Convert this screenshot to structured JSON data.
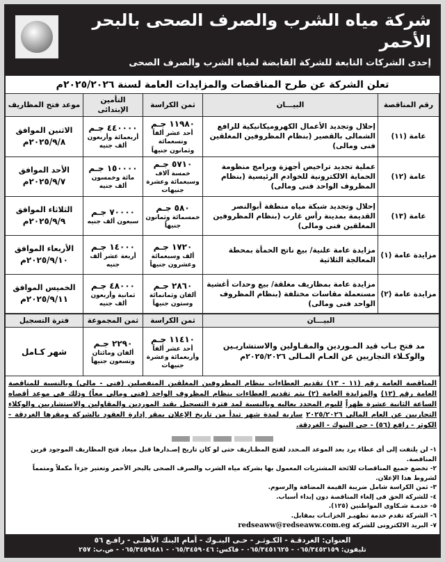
{
  "header": {
    "title": "شركة مياه الشرب والصرف الصحى بالبحر الأحمر",
    "subtitle": "إحدى الشركات التابعة للشركة القابضة لمياه الشرب والصرف الصحى",
    "logo_text": "شركة مياه الشرب والصرف الصحى بالبحر الأحمر"
  },
  "announcement": "تعلن الشركة عن طرح المناقصات والمزايدات العامة لسنة ٢٠٢٥/٢٠٢٦م",
  "table": {
    "headers": [
      "رقم المناقصة",
      "البيـــان",
      "ثمن الكراسة",
      "التأمين الإبتدائى",
      "موعد فتح المظاريف"
    ],
    "rows": [
      {
        "no": "عامة (١١)",
        "desc": "إحلال وتجديد الأعمال الكهروميكانيكية للرافع الشمالى بالقصير (بنظام المظروفين المغلقين فنى ومالى)",
        "fee": "١١٩٨٠ جـم",
        "fee_words": "أحد عشر ألفاً وتسعمائة وثمانون جنيهاً",
        "deposit": "٤٤٠٠٠٠ جـم",
        "deposit_words": "أربعمائة وأربعون ألف جنيه",
        "day": "الاثنين الموافق",
        "date": "٢٠٢٥/٩/٨م"
      },
      {
        "no": "عامة (١٢)",
        "desc": "عملية تجديد تراخيص أجهزة وبرامج منظومة الحماية الالكترونية للخوادم الرئيسية (بنظام المظروف الواحد فنى ومالى)",
        "fee": "٥٧١٠ جـم",
        "fee_words": "خمسة آلاف وسبعمائة وعشرة جنيهات",
        "deposit": "١٥٠٠٠٠ جـم",
        "deposit_words": "مائة وخمسون ألف جنيه",
        "day": "الأحد الموافق",
        "date": "٢٠٢٥/٩/٧م"
      },
      {
        "no": "عامة (١٣)",
        "desc": "إحلال وتجديد شبكة مياه منطقة أبوالنصر القديمة بمدينة رأس غارب (بنظام المظروفين المغلقين فنى ومالى)",
        "fee": "٥٨٠ جـم",
        "fee_words": "خمسمائة وثمانون جنيهاً",
        "deposit": "٧٠٠٠٠ جـم",
        "deposit_words": "سبعون ألف جنيه",
        "day": "الثلاثاء الموافق",
        "date": "٢٠٢٥/٩/٩م"
      },
      {
        "no": "مزايدة عامة (١)",
        "desc": "مزايدة عامة علنية/ بيع ناتج الحمأة بمحطة المعالجة الثلاثية",
        "fee": "١٧٢٠ جـم",
        "fee_words": "ألف وسبعمائة وعشرون جنيهاً",
        "deposit": "١٤٠٠٠ جـم",
        "deposit_words": "أربعة عشر ألف جنيه",
        "day": "الأربعاء الموافق",
        "date": "٢٠٢٥/٩/١٠م"
      },
      {
        "no": "مزايدة عامة (٢)",
        "desc": "مزايدة عامة بمظاريف مغلقة/ بيع وحدات أغشية مستعملة مقاسات مختلفة (بنظام المظروف الواحد فنى ومالى)",
        "fee": "٢٨٦٠ جـم",
        "fee_words": "ألفان وثمانمائة وستون جنيهاً",
        "deposit": "٤٨٠٠٠ جـم",
        "deposit_words": "ثمانية وأربعون ألف جنيه",
        "day": "الخميس الموافق",
        "date": "٢٠٢٥/٩/١١م"
      }
    ]
  },
  "registration": {
    "headers": [
      "البيـــان",
      "ثمن الكراسة",
      "ثمن المجموعة",
      "فترة التسجيل"
    ],
    "desc": "مد فتح بـاب قيد المـوردين والمقـاولين والاستشاريـين والوكـلاء التجاريين عن العـام المـالى ٢٠٢٥/٢٠٢٦م",
    "fee": "١١٤١٠ جـم",
    "fee_words": "أحد عشر ألفاً وأربعمائة وعشرة جنيهات",
    "group": "٢٢٩٠ جـم",
    "group_words": "ألفان ومائتان وتسعون جنيهاً",
    "period": "شهر كـامل"
  },
  "paragraph": [
    "المناقصة العامة رقم (١١ - ١٣) تقديم العطاءات بنظام المظروفين المغلقين المنفصلين (فنى - مالى) وبالنسبة للمناقصة العامة رقم (١٢)",
    "والمزايدة العامة (٢) يتم تقديم العطاءات بنظام المظروف الواحد (فنى ومالى معاً) وذلك فى موعد أقصاه الساعة الثانية عشرة ظهراً",
    "لليوم المحدد بعاليه وبالنسبة لمد فترة التسجيل بقيد الموردين والمقاولين والاستشاريين والوكلاء التجاريين عن العام المالى ٢٠٢٥/٢٠٢٦",
    "سارية لمدة شهر تبدأ من تاريخ الإعلان بمقر إدارة العقود بالشركة ومقرها الغردقة - الكوثر - رافع (٥٦) - حى البنوك - الغردقة."
  ],
  "notes": [
    "١- لن يلتفت إلى أى عطاء يرد بعد الموعد المـحدد لفتح المظـاريف حتى لو كان تاريخ إصـدارها قبل ميعاد فتح المظاريف الموجود قرين المناقصة.",
    "٢- تخضع جميع المناقصات للائحة المشتريات المعمول بها بشركة مياه الشرب والصرف الصحى بالبحر الأحمر وتعتبر جزءاً مكملاً ومتمماً لشروط هذا الإعلان.",
    "٣- ثمن الكراسة شامل ضريبة القيمة المضافة والرسوم.",
    "٤- للشركة الحق فى إلغاء المناقصة دون إبداء أسباب.",
    "٥- خدمـة شـكاوى المواطنين (١٢٥).",
    "٦- الشركة تقدم خدمة تطهيـر الخزانـات بمقابل.",
    "٧- البريد الالكترونى للشركة"
  ],
  "email": "redseaww@redseaww.com.eg",
  "footer": {
    "address": "العنوان: الغردقـة - الكـوثـر - حـى البنـوك - أمام البنك الأهلـى - رافـع ٥٦",
    "phones": "تليفون: ٠٦٥/٣٤٥٢١٥٩ - ٠٦٥/٣٤٥١٦٢٥ - فاكس: ٠٦٥/٣٤٥٩٠٤٦ - ٠٦٥/٣٤٥٩٤٨١ - ص.ب: ٢٥٧"
  },
  "colors": {
    "band": "#231f20",
    "header_cell": "#e6e6e6"
  }
}
